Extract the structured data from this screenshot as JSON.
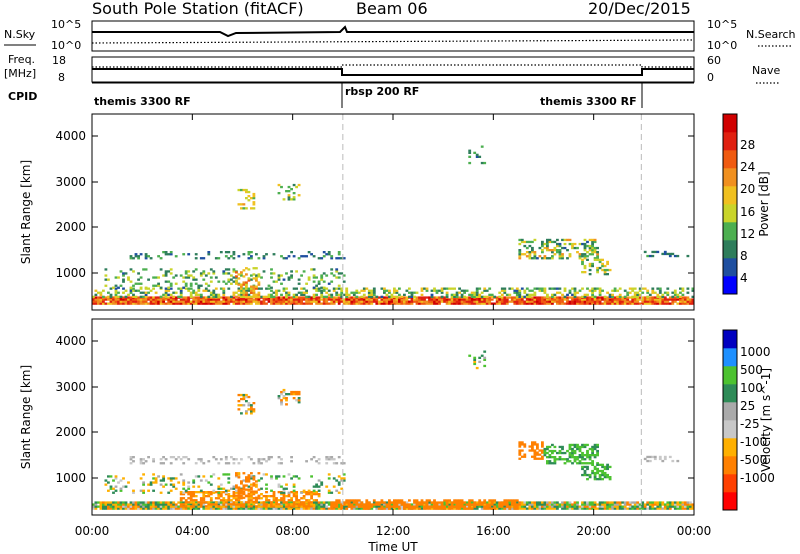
{
  "header": {
    "station": "South Pole Station (fitACF)",
    "beam": "Beam 06",
    "date": "20/Dec/2015"
  },
  "status_panels": {
    "nsky_label": "N.Sky",
    "nsky_ticks": [
      "10^5",
      "10^0"
    ],
    "nsearch_label": "N.Search",
    "nsearch_ticks": [
      "10^5",
      "10^0"
    ],
    "freq_label": "Freq.",
    "freq_unit": "[MHz]",
    "freq_ticks": [
      "18",
      "8"
    ],
    "nave_label": "Nave",
    "nave_ticks": [
      "60",
      "0"
    ],
    "cpid_label": "CPID",
    "cpid_modes": [
      "themis 3300 RF",
      "rbsp 200 RF",
      "themis 3300 RF"
    ]
  },
  "x_axis": {
    "label": "Time UT",
    "ticks": [
      "00:00",
      "04:00",
      "08:00",
      "12:00",
      "16:00",
      "20:00",
      "00:00"
    ]
  },
  "colors": {
    "power_scale": [
      "#0000ff",
      "#1f4fa0",
      "#2e7d5b",
      "#4caf50",
      "#c9d42a",
      "#f0c020",
      "#f09020",
      "#ef5a10",
      "#e02010",
      "#d00000"
    ],
    "velocity_scale": [
      "#ff0000",
      "#ff4000",
      "#ff8000",
      "#ffb000",
      "#c8c8c8",
      "#aaaaaa",
      "#2e8b57",
      "#4cc230",
      "#1e90ff",
      "#0000c0"
    ]
  },
  "chart_data": [
    {
      "type": "heatmap",
      "name": "power",
      "ylabel": "Slant Range [km]",
      "colorbar_label": "Power [dB]",
      "colorbar_ticks": [
        "28",
        "24",
        "20",
        "16",
        "12",
        "8",
        "4"
      ],
      "y_ticks": [
        "4000",
        "3000",
        "2000",
        "1000"
      ],
      "ylim": [
        180,
        4500
      ],
      "zlim": [
        0,
        32
      ],
      "xlim_hours": [
        0,
        24
      ],
      "mode_change_hours": [
        10,
        21.9
      ],
      "regions": [
        {
          "t": [
            0,
            24
          ],
          "r": [
            300,
            450
          ],
          "p": [
            18,
            30
          ],
          "d": 0.95
        },
        {
          "t": [
            0,
            24
          ],
          "r": [
            450,
            650
          ],
          "p": [
            6,
            18
          ],
          "d": 0.45
        },
        {
          "t": [
            0.5,
            10
          ],
          "r": [
            650,
            1100
          ],
          "p": [
            6,
            16
          ],
          "d": 0.2
        },
        {
          "t": [
            5.7,
            6.6
          ],
          "r": [
            450,
            1100
          ],
          "p": [
            14,
            24
          ],
          "d": 0.4
        },
        {
          "t": [
            5.8,
            6.4
          ],
          "r": [
            2400,
            2850
          ],
          "p": [
            10,
            20
          ],
          "d": 0.35
        },
        {
          "t": [
            7.4,
            8.2
          ],
          "r": [
            2600,
            2950
          ],
          "p": [
            8,
            20
          ],
          "d": 0.35
        },
        {
          "t": [
            1.5,
            10
          ],
          "r": [
            1300,
            1450
          ],
          "p": [
            4,
            12
          ],
          "d": 0.25
        },
        {
          "t": [
            17,
            20.2
          ],
          "r": [
            1300,
            1750
          ],
          "p": [
            6,
            20
          ],
          "d": 0.45
        },
        {
          "t": [
            19.5,
            20.7
          ],
          "r": [
            950,
            1300
          ],
          "p": [
            8,
            18
          ],
          "d": 0.4
        },
        {
          "t": [
            22,
            23.8
          ],
          "r": [
            1350,
            1450
          ],
          "p": [
            4,
            10
          ],
          "d": 0.3
        },
        {
          "t": [
            15,
            15.6
          ],
          "r": [
            3400,
            3800
          ],
          "p": [
            6,
            14
          ],
          "d": 0.2
        }
      ]
    },
    {
      "type": "heatmap",
      "name": "velocity",
      "ylabel": "Slant Range [km]",
      "colorbar_label": "Velocity [m s^-1]",
      "colorbar_ticks": [
        "1000",
        "500",
        "100",
        "25",
        "-25",
        "-100",
        "-500",
        "-1000"
      ],
      "y_ticks": [
        "4000",
        "3000",
        "2000",
        "1000"
      ],
      "ylim": [
        180,
        4500
      ],
      "zlim": [
        -1000,
        1000
      ],
      "xlim_hours": [
        0,
        24
      ],
      "mode_change_hours": [
        10,
        21.9
      ],
      "regions": [
        {
          "t": [
            0,
            24
          ],
          "r": [
            300,
            450
          ],
          "v": [
            -150,
            150
          ],
          "d": 0.95
        },
        {
          "t": [
            3.5,
            9
          ],
          "r": [
            350,
            700
          ],
          "v": [
            -200,
            -60
          ],
          "d": 0.55
        },
        {
          "t": [
            9.5,
            17
          ],
          "r": [
            300,
            500
          ],
          "v": [
            -450,
            -120
          ],
          "d": 0.65
        },
        {
          "t": [
            0.5,
            10
          ],
          "r": [
            650,
            1100
          ],
          "v": [
            -100,
            150
          ],
          "d": 0.2
        },
        {
          "t": [
            5.7,
            6.6
          ],
          "r": [
            450,
            1100
          ],
          "v": [
            -300,
            -80
          ],
          "d": 0.4
        },
        {
          "t": [
            5.8,
            6.4
          ],
          "r": [
            2400,
            2850
          ],
          "v": [
            -250,
            100
          ],
          "d": 0.35
        },
        {
          "t": [
            7.4,
            8.2
          ],
          "r": [
            2600,
            2950
          ],
          "v": [
            -300,
            80
          ],
          "d": 0.35
        },
        {
          "t": [
            1.5,
            10
          ],
          "r": [
            1300,
            1450
          ],
          "v": [
            -20,
            20
          ],
          "d": 0.25
        },
        {
          "t": [
            17,
            18
          ],
          "r": [
            1400,
            1800
          ],
          "v": [
            -450,
            -100
          ],
          "d": 0.6
        },
        {
          "t": [
            18,
            20.2
          ],
          "r": [
            1300,
            1750
          ],
          "v": [
            50,
            180
          ],
          "d": 0.55
        },
        {
          "t": [
            19.5,
            20.7
          ],
          "r": [
            950,
            1300
          ],
          "v": [
            40,
            150
          ],
          "d": 0.45
        },
        {
          "t": [
            22,
            23.8
          ],
          "r": [
            1350,
            1450
          ],
          "v": [
            -20,
            20
          ],
          "d": 0.3
        },
        {
          "t": [
            15,
            15.6
          ],
          "r": [
            3400,
            3800
          ],
          "v": [
            -100,
            400
          ],
          "d": 0.2
        }
      ]
    }
  ]
}
